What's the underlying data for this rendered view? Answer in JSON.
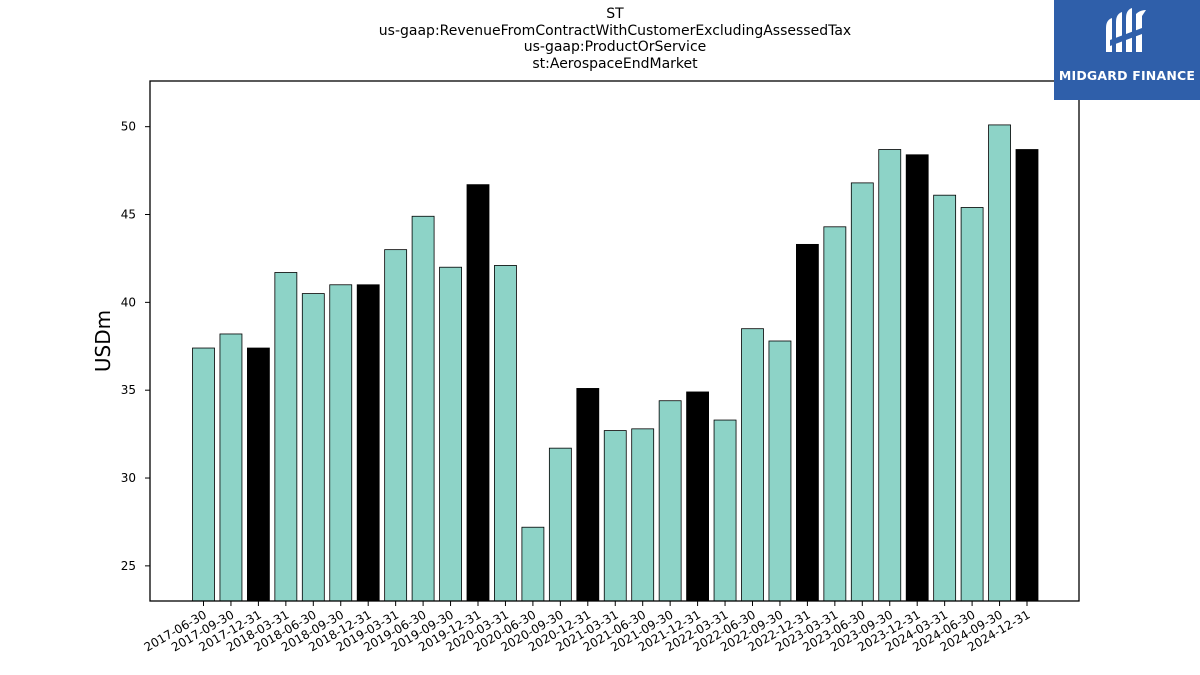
{
  "title_lines": [
    "ST",
    "us-gaap:RevenueFromContractWithCustomerExcludingAssessedTax",
    "us-gaap:ProductOrService",
    "st:AerospaceEndMarket"
  ],
  "logo": {
    "text": "MIDGARD FINANCE",
    "background": "#2f5faa"
  },
  "chart_data": {
    "type": "bar",
    "ylabel": "USDm",
    "xlabel": "",
    "ylim": [
      23,
      52.6
    ],
    "yticks": [
      25,
      30,
      35,
      40,
      45,
      50
    ],
    "grid": false,
    "colors": {
      "quarter": "#8dd3c7",
      "year_end": "#000000",
      "edge": "#000000"
    },
    "categories": [
      "2017-06-30",
      "2017-09-30",
      "2017-12-31",
      "2018-03-31",
      "2018-06-30",
      "2018-09-30",
      "2018-12-31",
      "2019-03-31",
      "2019-06-30",
      "2019-09-30",
      "2019-12-31",
      "2020-03-31",
      "2020-06-30",
      "2020-09-30",
      "2020-12-31",
      "2021-03-31",
      "2021-06-30",
      "2021-09-30",
      "2021-12-31",
      "2022-03-31",
      "2022-06-30",
      "2022-09-30",
      "2022-12-31",
      "2023-03-31",
      "2023-06-30",
      "2023-09-30",
      "2023-12-31",
      "2024-03-31",
      "2024-06-30",
      "2024-09-30",
      "2024-12-31"
    ],
    "values": [
      37.4,
      38.2,
      37.4,
      41.7,
      40.5,
      41.0,
      41.0,
      43.0,
      44.9,
      42.0,
      46.7,
      42.1,
      27.2,
      31.7,
      35.1,
      32.7,
      32.8,
      34.4,
      34.9,
      33.3,
      38.5,
      37.8,
      43.3,
      44.3,
      46.8,
      48.7,
      48.4,
      46.1,
      45.4,
      50.1,
      48.7
    ]
  }
}
